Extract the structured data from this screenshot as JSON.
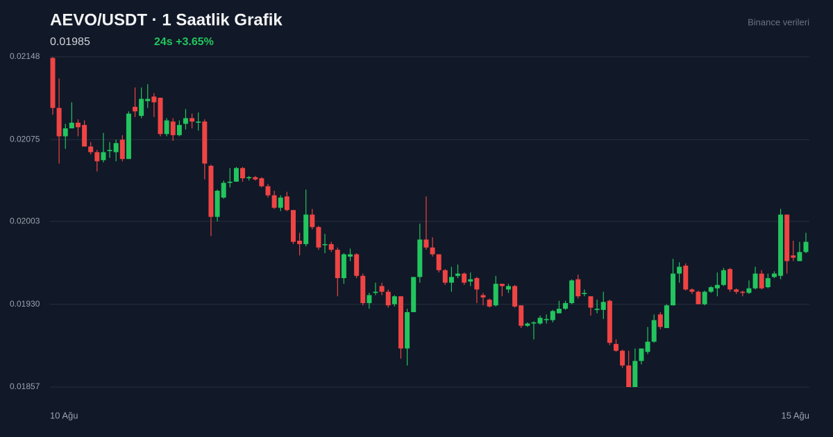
{
  "chart_data": {
    "type": "candlestick",
    "title": "AEVO/USDT · 1 Saatlik Grafik",
    "price": "0.01985",
    "change": "24s +3.65%",
    "source": "Binance verileri",
    "up_color": "#22c55e",
    "down_color": "#ef4444",
    "grid": true,
    "ylim": [
      0.01857,
      0.02148
    ],
    "yticks": [
      0.02148,
      0.02075,
      0.02003,
      {
        "value": 0.0193,
        "label": "0.01930"
      },
      0.01857
    ],
    "xticks": [
      {
        "value": 0,
        "label": "10 Ağu"
      },
      {
        "value": 119,
        "label": "15 Ağu"
      }
    ],
    "open": [
      0.02147,
      0.02103,
      0.02078,
      0.02085,
      0.0209,
      0.02088,
      0.02069,
      0.02064,
      0.02057,
      0.02065,
      0.02064,
      0.02075,
      0.02058,
      0.02104,
      0.02096,
      0.02109,
      0.02113,
      0.02112,
      0.0208,
      0.02091,
      0.02079,
      0.02089,
      0.02094,
      0.0209,
      0.02091,
      0.02052,
      0.02007,
      0.02024,
      0.02037,
      0.02038,
      0.0205,
      0.02041,
      0.02042,
      0.02041,
      0.02034,
      0.02026,
      0.02015,
      0.02025,
      0.02013,
      0.01986,
      0.01983,
      0.02009,
      0.01998,
      0.01982,
      0.01983,
      0.01978,
      0.01953,
      0.01972,
      0.01974,
      0.01955,
      0.01931,
      0.0194,
      0.01946,
      0.01941,
      0.0193,
      0.01937,
      0.01891,
      0.01923,
      0.01954,
      0.01987,
      0.0198,
      0.01974,
      0.0196,
      0.01949,
      0.01955,
      0.01957,
      0.0195,
      0.01953,
      0.01938,
      0.01934,
      0.01929,
      0.01948,
      0.01943,
      0.01946,
      0.01929,
      0.01911,
      0.01913,
      0.01913,
      0.01916,
      0.01916,
      0.01922,
      0.01926,
      0.01931,
      0.01952,
      0.01939,
      0.01937,
      0.01925,
      0.01925,
      0.01933,
      0.01895,
      0.01889,
      0.01876,
      0.01857,
      0.0188,
      0.01888,
      0.01897,
      0.01921,
      0.01909,
      0.01929,
      0.01957,
      0.01964,
      0.01943,
      0.01941,
      0.0193,
      0.01941,
      0.01944,
      0.01947,
      0.01961,
      0.01943,
      0.01941,
      0.0194,
      0.01944,
      0.01957,
      0.01945,
      0.01954,
      0.01955,
      0.02009,
      0.01973,
      0.01968,
      0.01976
    ],
    "high": [
      0.02148,
      0.02129,
      0.02089,
      0.02108,
      0.02093,
      0.02092,
      0.02073,
      0.02066,
      0.02081,
      0.02073,
      0.02075,
      0.02079,
      0.021,
      0.02121,
      0.02121,
      0.02124,
      0.02116,
      0.02112,
      0.02094,
      0.02094,
      0.02092,
      0.02102,
      0.02098,
      0.02099,
      0.02093,
      0.02053,
      0.02031,
      0.02039,
      0.0205,
      0.02051,
      0.02051,
      0.02043,
      0.02043,
      0.02042,
      0.02036,
      0.0203,
      0.02026,
      0.02029,
      0.02013,
      0.01993,
      0.02031,
      0.02014,
      0.01999,
      0.01992,
      0.01985,
      0.0198,
      0.01975,
      0.01979,
      0.01975,
      0.01957,
      0.0194,
      0.01949,
      0.01949,
      0.01943,
      0.01938,
      0.01937,
      0.01926,
      0.01954,
      0.02001,
      0.02025,
      0.01989,
      0.01974,
      0.01961,
      0.01963,
      0.01965,
      0.01958,
      0.01958,
      0.01954,
      0.0194,
      0.01935,
      0.01955,
      0.01948,
      0.01948,
      0.01947,
      0.01929,
      0.01914,
      0.01915,
      0.0192,
      0.01921,
      0.01925,
      0.01933,
      0.01933,
      0.01952,
      0.01956,
      0.01943,
      0.01937,
      0.01934,
      0.01941,
      0.01934,
      0.01899,
      0.0189,
      0.01889,
      0.01891,
      0.01891,
      0.0191,
      0.01921,
      0.01923,
      0.0193,
      0.0197,
      0.01967,
      0.01966,
      0.01944,
      0.01942,
      0.01942,
      0.01946,
      0.01958,
      0.01962,
      0.01962,
      0.01944,
      0.01942,
      0.01951,
      0.01963,
      0.0196,
      0.01957,
      0.01959,
      0.02014,
      0.02009,
      0.01986,
      0.01985,
      0.01993
    ],
    "low": [
      0.02097,
      0.02054,
      0.02067,
      0.02085,
      0.02078,
      0.02069,
      0.02062,
      0.02047,
      0.02055,
      0.02059,
      0.02056,
      0.02056,
      0.02058,
      0.02095,
      0.02094,
      0.02103,
      0.02095,
      0.02078,
      0.02078,
      0.02074,
      0.02078,
      0.02084,
      0.02085,
      0.02083,
      0.0204,
      0.0199,
      0.02003,
      0.02023,
      0.02033,
      0.02038,
      0.02038,
      0.02039,
      0.02039,
      0.02033,
      0.02024,
      0.02014,
      0.02012,
      0.02012,
      0.01983,
      0.01973,
      0.01981,
      0.01996,
      0.01978,
      0.01975,
      0.01976,
      0.01937,
      0.01948,
      0.01968,
      0.01953,
      0.01929,
      0.01926,
      0.01938,
      0.01938,
      0.01927,
      0.01928,
      0.01882,
      0.01876,
      0.01923,
      0.01949,
      0.01978,
      0.01972,
      0.01958,
      0.01947,
      0.01941,
      0.01953,
      0.01947,
      0.01946,
      0.01931,
      0.01929,
      0.01927,
      0.01928,
      0.01937,
      0.0194,
      0.01927,
      0.01909,
      0.0191,
      0.01899,
      0.01912,
      0.01913,
      0.01914,
      0.01922,
      0.01925,
      0.0193,
      0.01935,
      0.01937,
      0.0192,
      0.01922,
      0.01917,
      0.01894,
      0.01888,
      0.01874,
      0.01857,
      0.01857,
      0.01877,
      0.01886,
      0.01896,
      0.01908,
      0.01909,
      0.01929,
      0.01949,
      0.01942,
      0.01939,
      0.0193,
      0.01929,
      0.0194,
      0.01937,
      0.01946,
      0.01941,
      0.01939,
      0.01937,
      0.01939,
      0.01943,
      0.01943,
      0.01944,
      0.01953,
      0.01952,
      0.01957,
      0.01968,
      0.01968,
      0.01975
    ],
    "close": [
      0.02103,
      0.02078,
      0.02085,
      0.0209,
      0.02086,
      0.02069,
      0.02064,
      0.02056,
      0.02064,
      0.02066,
      0.02072,
      0.02058,
      0.02098,
      0.021,
      0.02111,
      0.02111,
      0.02108,
      0.0208,
      0.02092,
      0.02079,
      0.02088,
      0.02094,
      0.02091,
      0.02091,
      0.02054,
      0.02007,
      0.0203,
      0.02037,
      0.02038,
      0.0205,
      0.02041,
      0.02042,
      0.0204,
      0.02034,
      0.02026,
      0.02015,
      0.02024,
      0.02013,
      0.01985,
      0.01983,
      0.02009,
      0.01998,
      0.0198,
      0.01983,
      0.01978,
      0.01953,
      0.01974,
      0.01974,
      0.01955,
      0.01931,
      0.01938,
      0.01941,
      0.01941,
      0.01929,
      0.01937,
      0.01891,
      0.01923,
      0.01954,
      0.01987,
      0.0198,
      0.01974,
      0.0196,
      0.01949,
      0.01954,
      0.01957,
      0.01949,
      0.01952,
      0.01943,
      0.01936,
      0.01928,
      0.01948,
      0.01946,
      0.01946,
      0.01928,
      0.01911,
      0.01913,
      0.01914,
      0.01918,
      0.01917,
      0.01924,
      0.01926,
      0.01931,
      0.01951,
      0.01937,
      0.0194,
      0.01927,
      0.01926,
      0.01932,
      0.01896,
      0.01889,
      0.01876,
      0.01857,
      0.0188,
      0.01891,
      0.01897,
      0.01916,
      0.0191,
      0.01929,
      0.01957,
      0.01963,
      0.01943,
      0.01941,
      0.0193,
      0.01941,
      0.01945,
      0.01947,
      0.0196,
      0.01943,
      0.01941,
      0.0194,
      0.01944,
      0.01957,
      0.01944,
      0.01953,
      0.01957,
      0.02009,
      0.01968,
      0.01971,
      0.01976,
      0.01985
    ]
  }
}
